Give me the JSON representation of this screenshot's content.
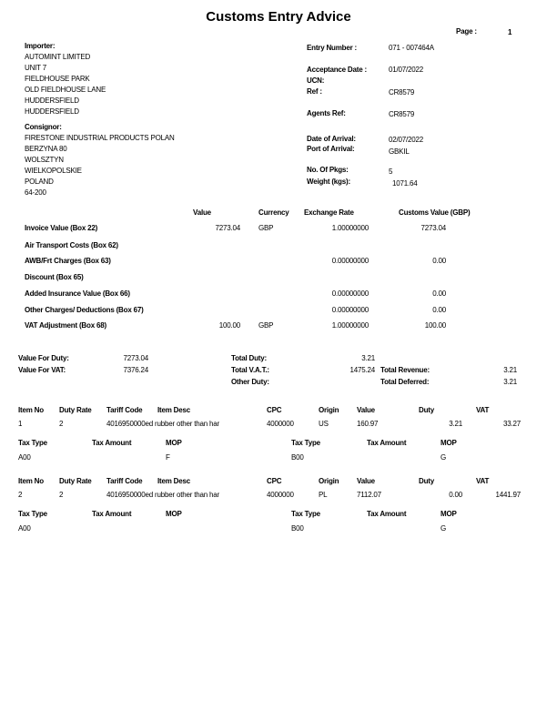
{
  "title": "Customs Entry Advice",
  "page": {
    "label": "Page :",
    "value": "1"
  },
  "importer": {
    "label": "Importer:",
    "lines": [
      "AUTOMINT LIMITED",
      "UNIT 7",
      "FIELDHOUSE PARK",
      "OLD FIELDHOUSE LANE",
      "HUDDERSFIELD",
      "HUDDERSFIELD"
    ]
  },
  "consignor": {
    "label": "Consignor:",
    "lines": [
      "FIRESTONE INDUSTRIAL PRODUCTS POLAN",
      "BERZYNA 80",
      "WOLSZTYN",
      "WIELKOPOLSKIE",
      "POLAND",
      "64-200"
    ]
  },
  "entry": {
    "entry_number": {
      "label": "Entry Number :",
      "value": "071 - 007464A"
    },
    "acceptance_date": {
      "label": "Acceptance Date :",
      "value": "01/07/2022"
    },
    "ucn": {
      "label": "UCN:",
      "value": ""
    },
    "ref": {
      "label": "Ref :",
      "value": "CR8579"
    },
    "agents_ref": {
      "label": "Agents Ref:",
      "value": "CR8579"
    },
    "date_of_arrival": {
      "label": "Date of Arrival:",
      "value": "02/07/2022"
    },
    "port_of_arrival": {
      "label": "Port of Arrival:",
      "value": "GBKIL"
    },
    "no_of_pkgs": {
      "label": "No. Of Pkgs:",
      "value": "5"
    },
    "weight": {
      "label": "Weight (kgs):",
      "value": "1071.64"
    }
  },
  "valuation": {
    "headers": [
      "Value",
      "Currency",
      "Exchange Rate",
      "Customs Value (GBP)"
    ],
    "rows": [
      {
        "label": "Invoice Value (Box 22)",
        "value": "7273.04",
        "currency": "GBP",
        "rate": "1.00000000",
        "customs": "7273.04"
      },
      {
        "label": "Air Transport Costs (Box 62)",
        "value": "",
        "currency": "",
        "rate": "",
        "customs": ""
      },
      {
        "label": "AWB/Frt Charges (Box 63)",
        "value": "",
        "currency": "",
        "rate": "0.00000000",
        "customs": "0.00"
      },
      {
        "label": "Discount (Box 65)",
        "value": "",
        "currency": "",
        "rate": "",
        "customs": ""
      },
      {
        "label": "Added Insurance Value (Box 66)",
        "value": "",
        "currency": "",
        "rate": "0.00000000",
        "customs": "0.00"
      },
      {
        "label": "Other Charges/ Deductions (Box 67)",
        "value": "",
        "currency": "",
        "rate": "0.00000000",
        "customs": "0.00"
      },
      {
        "label": "VAT Adjustment (Box 68)",
        "value": "100.00",
        "currency": "GBP",
        "rate": "1.00000000",
        "customs": "100.00"
      }
    ]
  },
  "totals": {
    "value_for_duty": {
      "label": "Value For Duty:",
      "value": "7273.04"
    },
    "value_for_vat": {
      "label": "Value For VAT:",
      "value": "7376.24"
    },
    "total_duty": {
      "label": "Total Duty:",
      "value": "3.21"
    },
    "total_vat": {
      "label": "Total V.A.T.:",
      "value": "1475.24"
    },
    "other_duty": {
      "label": "Other Duty:",
      "value": ""
    },
    "total_revenue": {
      "label": "Total Revenue:",
      "value": "3.21"
    },
    "total_deferred": {
      "label": "Total Deferred:",
      "value": "3.21"
    }
  },
  "item_headers": [
    "Item No",
    "Duty Rate",
    "Tariff Code",
    "Item Desc",
    "CPC",
    "Origin",
    "Value",
    "Duty",
    "VAT"
  ],
  "tax_headers": [
    "Tax Type",
    "Tax Amount",
    "MOP",
    "Tax Type",
    "Tax Amount",
    "MOP"
  ],
  "items": [
    {
      "no": "1",
      "duty_rate": "2",
      "tariff_desc": "4016950000ed rubber other than har",
      "cpc": "4000000",
      "origin": "US",
      "value": "160.97",
      "duty": "3.21",
      "vat": "33.27",
      "tax": [
        {
          "type": "A00",
          "amount": "",
          "mop": "F"
        },
        {
          "type": "B00",
          "amount": "",
          "mop": "G"
        }
      ]
    },
    {
      "no": "2",
      "duty_rate": "2",
      "tariff_desc": "4016950000ed rubber other than har",
      "cpc": "4000000",
      "origin": "PL",
      "value": "7112.07",
      "duty": "0.00",
      "vat": "1441.97",
      "tax": [
        {
          "type": "A00",
          "amount": "",
          "mop": ""
        },
        {
          "type": "B00",
          "amount": "",
          "mop": "G"
        }
      ]
    }
  ]
}
